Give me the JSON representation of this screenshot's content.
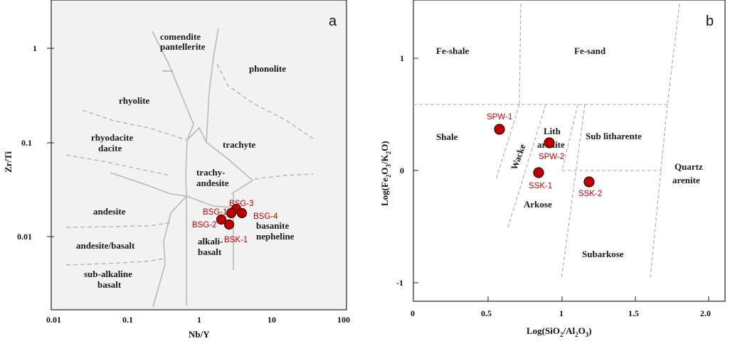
{
  "chart_data": [
    {
      "panel": "a",
      "type": "scatter",
      "xlabel": "Nb/Y",
      "ylabel": "Zr/Ti",
      "x_scale": "log",
      "y_scale": "log",
      "xlim": [
        0.01,
        100
      ],
      "ylim": [
        0.001,
        3
      ],
      "x_ticks": [
        "0.01",
        "0.1",
        "1",
        "10",
        "100"
      ],
      "y_ticks": [
        "1",
        "0.1",
        "0.01"
      ],
      "fields": [
        "comendite pantellerite",
        "phonolite",
        "rhyolite",
        "trachyte",
        "rhyodacite dacite",
        "trachy- andesite",
        "andesite",
        "basanite nepheline",
        "andesite/basalt",
        "alkali- basalt",
        "sub-alkaline basalt"
      ],
      "points": [
        {
          "label": "BSG-3",
          "x": 3.0,
          "y": 0.019
        },
        {
          "label": "BSG-1",
          "x": 2.5,
          "y": 0.017
        },
        {
          "label": "BSG-4",
          "x": 3.7,
          "y": 0.0175
        },
        {
          "label": "BSG-2",
          "x": 2.0,
          "y": 0.015
        },
        {
          "label": "BSK-1",
          "x": 2.6,
          "y": 0.0135
        }
      ]
    },
    {
      "panel": "b",
      "type": "scatter",
      "xlabel": "Log(SiO2/Al2O3)",
      "ylabel": "Log(Fe2O3/K2O)",
      "xlim": [
        0,
        2.1
      ],
      "ylim": [
        -1.3,
        1.5
      ],
      "x_ticks": [
        "0",
        "0.5",
        "1",
        "1.5",
        "2.0"
      ],
      "y_ticks": [
        "1",
        "0",
        "-1"
      ],
      "fields": [
        "Fe-shale",
        "Fe-sand",
        "Shale",
        "Lith arenite",
        "Wacke",
        "Sub litharente",
        "Quartz arenite",
        "Arkose",
        "Subarkose"
      ],
      "points": [
        {
          "label": "SPW-1",
          "x": 0.57,
          "y": 0.36
        },
        {
          "label": "SPW-2",
          "x": 0.91,
          "y": 0.24
        },
        {
          "label": "SSK-1",
          "x": 0.84,
          "y": -0.02
        },
        {
          "label": "SSK-2",
          "x": 1.18,
          "y": -0.11
        }
      ]
    }
  ],
  "panel_a": {
    "letter": "a",
    "xlabel": "Nb/Y",
    "ylabel": "Zr/Ti",
    "x_ticks": [
      "0.01",
      "0.1",
      "1",
      "10",
      "100"
    ],
    "y_ticks": [
      "1",
      "0.1",
      "0.01"
    ],
    "f_comendite_1": "comendite",
    "f_comendite_2": "pantellerite",
    "f_phonolite": "phonolite",
    "f_rhyolite": "rhyolite",
    "f_trachyte": "trachyte",
    "f_rhyodacite_1": "rhyodacite",
    "f_rhyodacite_2": "dacite",
    "f_trachyandesite_1": "trachy-",
    "f_trachyandesite_2": "andesite",
    "f_andesite": "andesite",
    "f_basanite_1": "basanite",
    "f_basanite_2": "nepheline",
    "f_andesite_basalt": "andesite/basalt",
    "f_alkali_1": "alkali-",
    "f_alkali_2": "basalt",
    "f_subalk_1": "sub-alkaline",
    "f_subalk_2": "basalt",
    "p_bsg3": "BSG-3",
    "p_bsg1": "BSG-1",
    "p_bsg4": "BSG-4",
    "p_bsg2": "BSG-2",
    "p_bsk1": "BSK-1"
  },
  "panel_b": {
    "letter": "b",
    "xlabel_pre": "Log(SiO",
    "xlabel_sub1": "2",
    "xlabel_mid": "/Al",
    "xlabel_sub2": "2",
    "xlabel_o": "O",
    "xlabel_sub3": "3",
    "xlabel_post": ")",
    "ylabel_pre": "Log(Fe",
    "ylabel_sub1": "2",
    "ylabel_o": "O",
    "ylabel_sub2": "3",
    "ylabel_mid": "/K",
    "ylabel_sub3": "2",
    "ylabel_post": "O)",
    "x_ticks": [
      "0",
      "0.5",
      "1",
      "1.5",
      "2.0"
    ],
    "y_ticks": [
      "1",
      "0",
      "-1"
    ],
    "f_feshale": "Fe-shale",
    "f_fesand": "Fe-sand",
    "f_shale": "Shale",
    "f_lith_1": "Lith",
    "f_lith_2": "arenite",
    "f_wacke": "Wacke",
    "f_sublith": "Sub litharente",
    "f_quartz_1": "Quartz",
    "f_quartz_2": "arenite",
    "f_arkose": "Arkose",
    "f_subarkose": "Subarkose",
    "p_spw1": "SPW-1",
    "p_spw2": "SPW-2",
    "p_ssk1": "SSK-1",
    "p_ssk2": "SSK-2"
  }
}
